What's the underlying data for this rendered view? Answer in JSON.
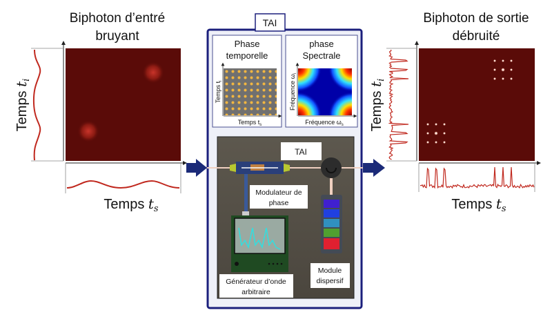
{
  "input": {
    "title_line1": "Biphoton d’entré",
    "title_line2": "bruyant",
    "y_label": "Temps",
    "y_var": "t",
    "y_sub": "i",
    "x_label": "Temps",
    "x_var": "t",
    "x_sub": "s"
  },
  "tai": {
    "label": "TAI",
    "temporal_panel": {
      "title_line1": "Phase",
      "title_line2": "temporelle",
      "y_label": "Temps t",
      "y_sub": "i",
      "x_label": "Temps t",
      "x_sub": "s"
    },
    "spectral_panel": {
      "title_line1": "phase",
      "title_line2": "Spectrale",
      "y_label": "Fréquence ω",
      "y_sub": "i",
      "x_label": "Fréquence ω",
      "x_sub": "s"
    },
    "photo": {
      "label": "TAI",
      "modulator": {
        "line1": "Modulateur de",
        "line2": "phase"
      },
      "generator": {
        "line1": "Générateur d’onde",
        "line2": "arbitraire"
      },
      "dispersive": {
        "line1": "Module",
        "line2": "dispersif"
      }
    }
  },
  "output": {
    "title_line1": "Biphoton de sortie",
    "title_line2": "débruité",
    "y_label": "Temps",
    "y_var": "t",
    "y_sub": "i",
    "x_label": "Temps",
    "x_var": "t",
    "x_sub": "s"
  },
  "colors": {
    "heatmap_bg": "#5a0b08",
    "frame": "#1b1f7c",
    "arrow": "#1b2a78",
    "trace": "#c0281e"
  }
}
